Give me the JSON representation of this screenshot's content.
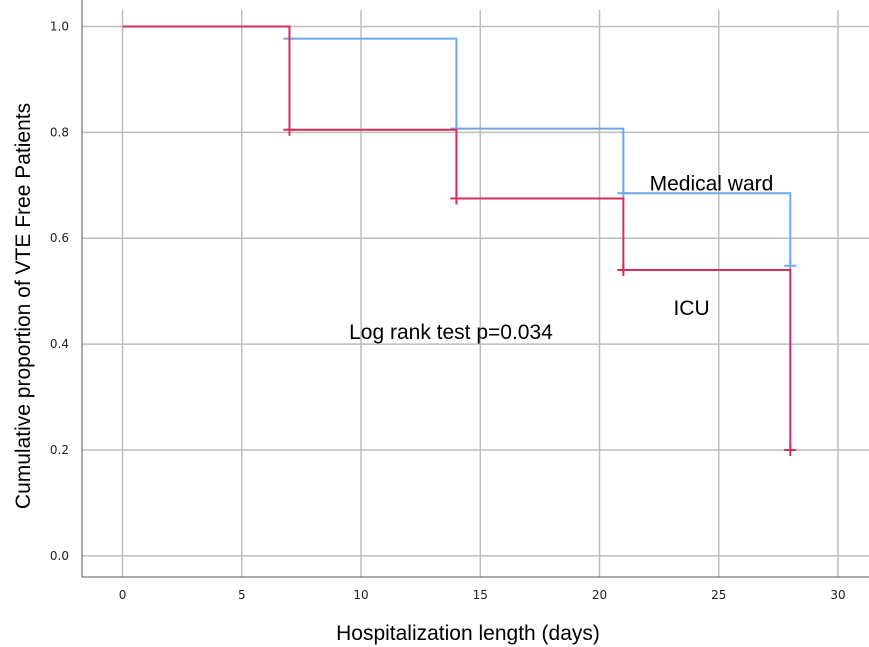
{
  "chart_data": {
    "type": "line",
    "step": true,
    "title": "",
    "xlabel": "Hospitalization length (days)",
    "ylabel": "Cumulative proportion of VTE Free Patients",
    "xlim": [
      -1.7,
      31.3
    ],
    "ylim": [
      -0.04,
      1.05
    ],
    "xticks": [
      0,
      5,
      10,
      15,
      20,
      25,
      30
    ],
    "yticks": [
      0.0,
      0.2,
      0.4,
      0.6,
      0.8,
      1.0
    ],
    "ytick_labels": [
      "0.0",
      "0.2",
      "0.4",
      "0.6",
      "0.8",
      "1.0"
    ],
    "grid": true,
    "series": [
      {
        "name": "ICU",
        "color": "#d62d5a",
        "steps": [
          [
            0,
            1.0
          ],
          [
            7,
            0.805
          ],
          [
            14,
            0.675
          ],
          [
            21,
            0.54
          ],
          [
            28,
            0.2
          ]
        ],
        "end_x": 28,
        "censored": [
          [
            7,
            0.805
          ],
          [
            14,
            0.675
          ],
          [
            21,
            0.54
          ],
          [
            28,
            0.2
          ]
        ]
      },
      {
        "name": "Medical ward",
        "color": "#6fa8e8",
        "steps": [
          [
            0,
            1.0
          ],
          [
            7,
            0.977
          ],
          [
            14,
            0.807
          ],
          [
            21,
            0.685
          ],
          [
            28,
            0.548
          ]
        ],
        "end_x": 28,
        "censored": [
          [
            7,
            0.977
          ],
          [
            14,
            0.807
          ],
          [
            21,
            0.685
          ],
          [
            28,
            0.548
          ]
        ]
      }
    ],
    "annotations": [
      {
        "text": "Medical ward",
        "x": 22.1,
        "y": 0.69
      },
      {
        "text": "ICU",
        "x": 23.1,
        "y": 0.455
      },
      {
        "text": "Log rank test p=0.034",
        "x": 9.5,
        "y": 0.41
      }
    ]
  }
}
